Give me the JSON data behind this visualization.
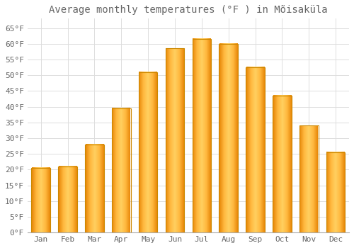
{
  "title": "Average monthly temperatures (°F ) in Mõisaküla",
  "months": [
    "Jan",
    "Feb",
    "Mar",
    "Apr",
    "May",
    "Jun",
    "Jul",
    "Aug",
    "Sep",
    "Oct",
    "Nov",
    "Dec"
  ],
  "values": [
    20.5,
    21.0,
    28.0,
    39.5,
    51.0,
    58.5,
    61.5,
    60.0,
    52.5,
    43.5,
    34.0,
    25.5
  ],
  "bar_color_light": "#FFB83F",
  "bar_color_main": "#FFA020",
  "bar_color_edge": "#CC7700",
  "ylim": [
    0,
    68
  ],
  "yticks": [
    0,
    5,
    10,
    15,
    20,
    25,
    30,
    35,
    40,
    45,
    50,
    55,
    60,
    65
  ],
  "ytick_labels": [
    "0°F",
    "5°F",
    "10°F",
    "15°F",
    "20°F",
    "25°F",
    "30°F",
    "35°F",
    "40°F",
    "45°F",
    "50°F",
    "55°F",
    "60°F",
    "65°F"
  ],
  "background_color": "#FFFFFF",
  "grid_color": "#DDDDDD",
  "title_fontsize": 10,
  "tick_fontsize": 8,
  "text_color": "#666666"
}
